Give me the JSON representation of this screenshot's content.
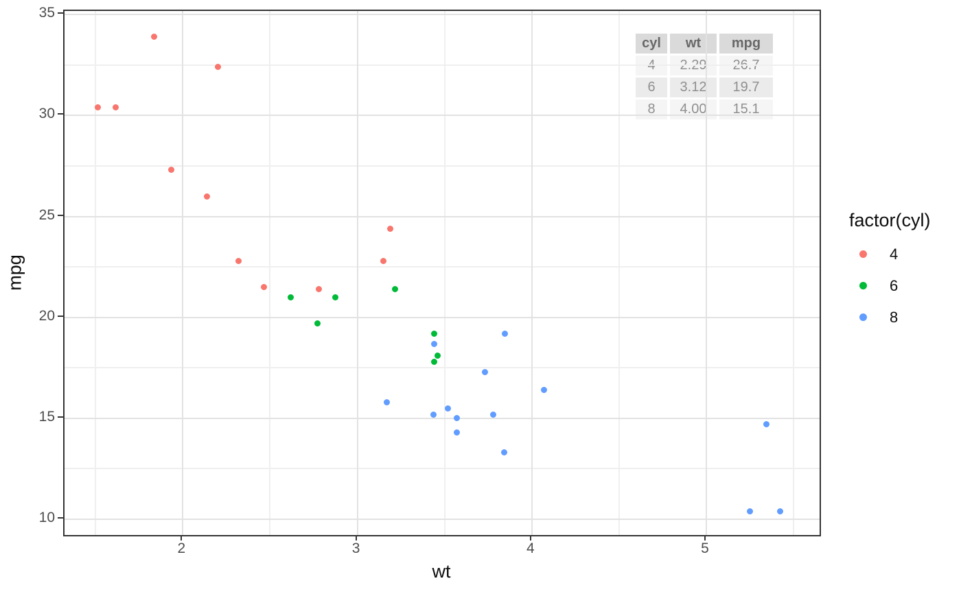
{
  "chart_data": {
    "type": "scatter",
    "xlabel": "wt",
    "ylabel": "mpg",
    "xlim": [
      1.322,
      5.649
    ],
    "ylim": [
      9.22,
      35.18
    ],
    "x_major_ticks": [
      2,
      3,
      4,
      5
    ],
    "y_major_ticks": [
      10,
      15,
      20,
      25,
      30,
      35
    ],
    "x_minor_gridlines": [
      1.5,
      2.5,
      3.5,
      4.5,
      5.5
    ],
    "y_minor_gridlines": [
      12.5,
      17.5,
      22.5,
      27.5,
      32.5
    ],
    "grid": "major-and-minor",
    "legend_position": "right",
    "legend": {
      "title": "factor(cyl)",
      "entries": [
        {
          "label": "4",
          "color": "#F8766D"
        },
        {
          "label": "6",
          "color": "#00BA38"
        },
        {
          "label": "8",
          "color": "#619CFF"
        }
      ]
    },
    "series": [
      {
        "name": "4",
        "color": "#F8766D",
        "points": [
          [
            2.32,
            22.8
          ],
          [
            3.19,
            24.4
          ],
          [
            3.15,
            22.8
          ],
          [
            2.2,
            32.4
          ],
          [
            1.615,
            30.4
          ],
          [
            1.835,
            33.9
          ],
          [
            2.465,
            21.5
          ],
          [
            1.935,
            27.3
          ],
          [
            2.14,
            26.0
          ],
          [
            1.513,
            30.4
          ],
          [
            2.78,
            21.4
          ]
        ]
      },
      {
        "name": "6",
        "color": "#00BA38",
        "points": [
          [
            2.62,
            21.0
          ],
          [
            2.875,
            21.0
          ],
          [
            3.215,
            21.4
          ],
          [
            3.46,
            18.1
          ],
          [
            3.44,
            19.2
          ],
          [
            3.44,
            17.8
          ],
          [
            2.77,
            19.7
          ]
        ]
      },
      {
        "name": "8",
        "color": "#619CFF",
        "points": [
          [
            3.44,
            18.7
          ],
          [
            3.57,
            14.3
          ],
          [
            4.07,
            16.4
          ],
          [
            3.73,
            17.3
          ],
          [
            3.78,
            15.2
          ],
          [
            5.25,
            10.4
          ],
          [
            5.424,
            10.4
          ],
          [
            5.345,
            14.7
          ],
          [
            3.52,
            15.5
          ],
          [
            3.435,
            15.2
          ],
          [
            3.84,
            13.3
          ],
          [
            3.845,
            19.2
          ],
          [
            3.17,
            15.8
          ],
          [
            3.57,
            15.0
          ]
        ]
      }
    ],
    "inset_table": {
      "headers": [
        "cyl",
        "wt",
        "mpg"
      ],
      "rows": [
        [
          "4",
          "2.29",
          "26.7"
        ],
        [
          "6",
          "3.12",
          "19.7"
        ],
        [
          "8",
          "4.00",
          "15.1"
        ]
      ]
    }
  },
  "colors": {
    "panel_border": "#333333",
    "grid_major": "#e2e2e2",
    "grid_minor": "#efefef",
    "tick_text": "#4d4d4d",
    "axis_title_text": "#0d0d0d"
  }
}
